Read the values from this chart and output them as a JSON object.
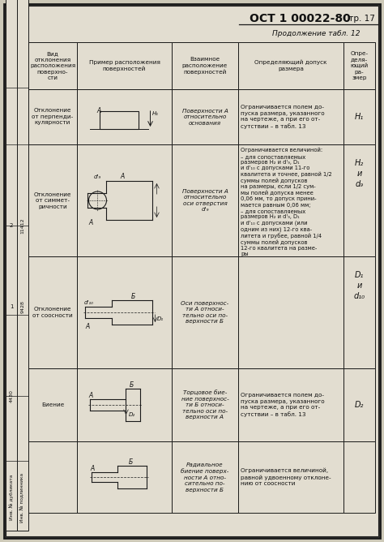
{
  "title_main": "ОСТ 1 00022-80",
  "title_page": "Стр. 17",
  "subtitle": "Продолжение табл. 12",
  "bg_color": "#cdc9b8",
  "cell_bg": "#e2ddd0",
  "border_color": "#1a1a1a",
  "text_color": "#111111",
  "stamp_col1_texts": [
    "Инв. № дубликата",
    "Инв. № подлинника"
  ],
  "stamp_numbers": [
    "2",
    "1",
    "4430",
    "11412",
    "9428"
  ],
  "col_headers": [
    "Вид\nотклонения\nрасположения\nповерхно-\nсти",
    "Пример расположения\nповерхностей",
    "Взаимное\nрасположение\nповерхностей",
    "Определяющий допуск\nразмера",
    "Опре-\nделя-\nющий\nра-\nзмер"
  ],
  "row0_col0": "Отклонение\nот перпенди-\nкулярности",
  "row0_col2": "Поверхности А\nотносительно\nоснования",
  "row0_col3": "Ограничивается полем до-\nпуска размера, указанного\nна чертеже, а при его от-\nсутствии – в табл. 13",
  "row0_col4": "H₁",
  "row1_col0": "Отклонение\nот симмет-\nричности",
  "row1_col2": "Поверхности А\nотносительно\nоси отверстия\nd'₉",
  "row1_col3": "Ограничивается величиной:\n– для сопоставляемых\nразмеров H₂ и d'₉, D₁\nи d'₁₀ с допусками 11-го\nквалитета и точнее, равной 1/2\nсуммы полей допусков\nна размеры, если 1/2 сум-\nмы полей допуска менее\n0,06 мм, то допуск прини-\nмается равным 0,06 мм;\n– для сопоставляемых\nразмеров H₂ и d'₉, D₁\nи d'₁₀ с допусками (или\nодним из них) 12-го ква-\nлитета и грубее, равной 1/4\nсуммы полей допусков\n12-го квалитета на разме-\nры",
  "row1_col4": "H₂\nи\nd₉",
  "row2_col0": "Отклонение\nот соосности",
  "row2_col2": "Оси поверхнос-\nти А относи-\nтельно оси по-\nверхности Б",
  "row2_col4": "D₁\nи\nd₁₀",
  "row3_col0": "Биение",
  "row3_col2": "Торцовое бие-\nние поверхнос-\nти Б относи-\nтельно оси по-\nверхности А",
  "row3_col3": "Ограничивается полем до-\nпуска размера, указанного\nна чертеже, а при его от-\nсутствии – в табл. 13",
  "row3_col4": "D₂",
  "row4_col2": "Радиальное\nбиение поверх-\nности А отно-\nсительно по-\nверхности Б",
  "row4_col3": "Ограничивается величиной,\nравной удвоенному отклоне-\nнию от соосности"
}
